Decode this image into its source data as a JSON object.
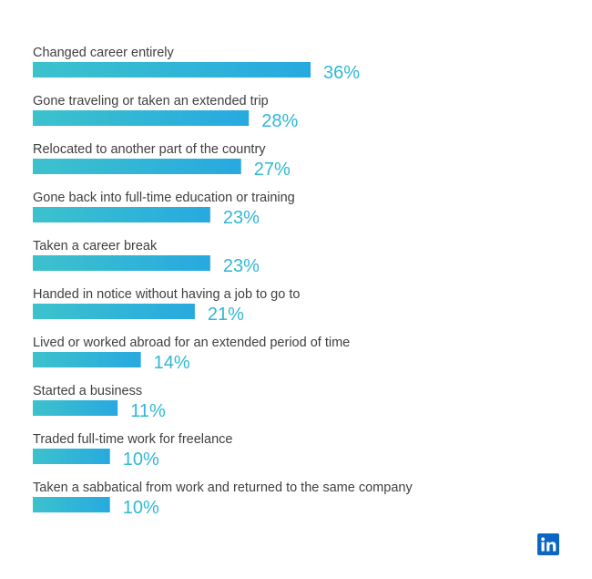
{
  "chart_data": {
    "type": "bar",
    "orientation": "horizontal",
    "categories": [
      "Changed career entirely",
      "Gone traveling or taken an extended trip",
      "Relocated to another part of the country",
      "Gone back into full-time education or training",
      "Taken a career break",
      "Handed in notice without having a job to go to",
      "Lived or worked abroad for an extended period of time",
      "Started a business",
      "Traded full-time work for freelance",
      "Taken a sabbatical from work and returned to the same company"
    ],
    "values": [
      36,
      28,
      27,
      23,
      23,
      21,
      14,
      11,
      10,
      10
    ],
    "value_labels": [
      "36%",
      "28%",
      "27%",
      "23%",
      "23%",
      "21%",
      "14%",
      "11%",
      "10%",
      "10%"
    ],
    "unit": "%",
    "title": "",
    "xlabel": "",
    "ylabel": "",
    "grid": false,
    "legend": "none"
  },
  "colors": {
    "bar_gradient_start": "#3cc2cc",
    "bar_gradient_end": "#27a9e0",
    "value_text": "#2fb8d3",
    "label_text": "#3f3f3f",
    "logo_background": "#0a66c2"
  },
  "branding": {
    "logo_icon": "linkedin-logo-icon"
  }
}
